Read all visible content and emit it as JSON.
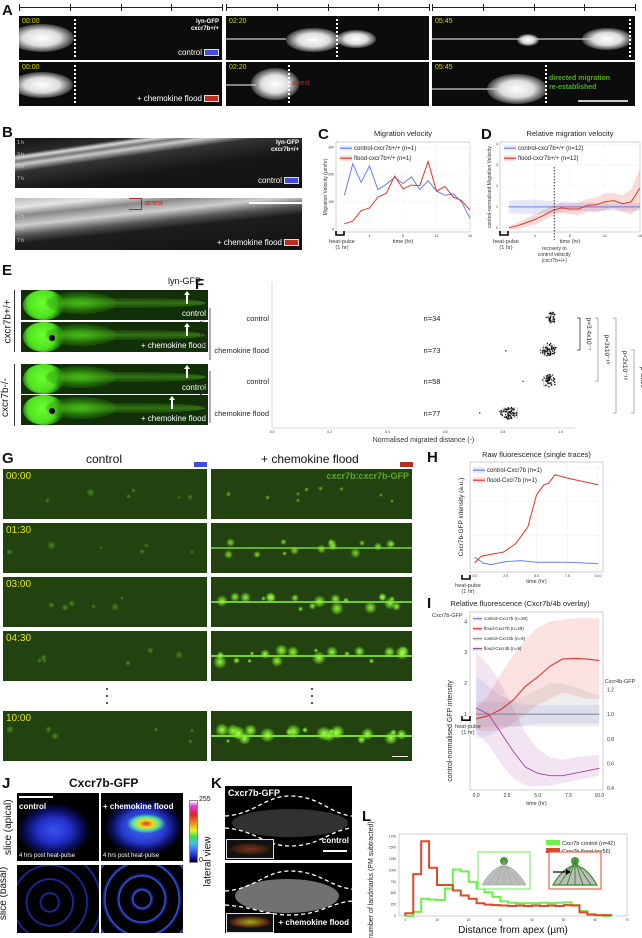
{
  "colors": {
    "control": "#3b4fd8",
    "flood": "#b5301f",
    "blue_line": "#6b7fe8",
    "red_line": "#e0352b",
    "grey_line": "#8a8a8a",
    "purple_line": "#a0449a",
    "green_hist": "#6cf04c",
    "red_hist": "#e0482b"
  },
  "panel_A": {
    "label": "A",
    "timestamps": [
      "00:00",
      "02:20",
      "05:45"
    ],
    "marker": "lyn-GFP",
    "genotype": "cxcr7b+/+",
    "control": "control",
    "flood": "+ chemokine flood",
    "arrest": "arrest",
    "directed_1": "directed migration",
    "directed_2": "re-established"
  },
  "panel_B": {
    "label": "B",
    "times": [
      "1 h",
      "3 h",
      "5 h",
      "7 h"
    ],
    "marker": "lyn-GFP",
    "genotype": "cxcr7b+/+",
    "control": "control",
    "flood": "+ chemokine flood",
    "arrest": "arrest"
  },
  "panel_C": {
    "label": "C"
  },
  "panel_D": {
    "label": "D"
  },
  "panel_E": {
    "label": "E",
    "marker": "lyn-GFP",
    "genotypes": [
      "cxcr7b+/+",
      "cxcr7b-/-"
    ],
    "control": "control",
    "flood": "+ chemokine flood"
  },
  "panel_F": {
    "label": "F"
  },
  "panel_G": {
    "label": "G",
    "col_control": "control",
    "col_flood": "+ chemokine flood",
    "marker": "cxcr7b:cxcr7b-GFP",
    "timestamps": [
      "00:00",
      "01:30",
      "03:00",
      "04:30",
      "10:00"
    ]
  },
  "panel_H": {
    "label": "H"
  },
  "panel_I": {
    "label": "I"
  },
  "panel_J": {
    "label": "J",
    "title": "Cxcr7b-GFP",
    "row_apical": "slice (apical)",
    "row_basal": "slice (basal)",
    "control": "control",
    "flood": "+ chemokine flood",
    "time_note": "4 hrs post heat-pulse",
    "cbar_max": "255",
    "cbar_min": "0"
  },
  "panel_K": {
    "label": "K",
    "title": "Cxcr7b-GFP",
    "side": "lateral view",
    "control": "control",
    "flood": "+ chemokine flood"
  },
  "panel_L": {
    "label": "L"
  },
  "chart_data": [
    {
      "type": "line",
      "panel": "C",
      "title": "Migration velocity",
      "xlabel": "time (hr)",
      "ylabel": "Migration Velocity (µm/hr)",
      "xlim": [
        0,
        16
      ],
      "ylim": [
        -10,
        320
      ],
      "xticks": [
        4,
        8,
        12,
        16
      ],
      "xtick_labels": [
        "4",
        "8",
        "12",
        "16"
      ],
      "yticks": [
        0,
        100,
        200,
        300
      ],
      "ytick_labels": [
        "0",
        "100",
        "200",
        "300"
      ],
      "heat_pulse": [
        "heat-pulse",
        "(1 hr)"
      ],
      "x": [
        1,
        2,
        3,
        4,
        5,
        6,
        7,
        8,
        9,
        10,
        11,
        12,
        13,
        14,
        15,
        16
      ],
      "series": [
        {
          "name": "control-cxcr7b+/+ (n=1)",
          "color": "#6b7fe8",
          "values": [
            125,
            240,
            172,
            232,
            145,
            165,
            190,
            168,
            192,
            145,
            178,
            140,
            125,
            130,
            100,
            40
          ]
        },
        {
          "name": "flood-cxcr7b+/+ (n=1)",
          "color": "#e0352b",
          "values": [
            20,
            30,
            68,
            78,
            118,
            132,
            195,
            148,
            162,
            160,
            248,
            140,
            157,
            118,
            105,
            70
          ]
        }
      ]
    },
    {
      "type": "line",
      "panel": "D",
      "title": "Relative migration velocity",
      "xlabel": "time (hr)",
      "ylabel": "control-normalised Migration Velocity",
      "xlim": [
        0,
        16
      ],
      "ylim": [
        -0.2,
        4.1
      ],
      "xticks": [
        4,
        8,
        12,
        16
      ],
      "xtick_labels": [
        "4",
        "8",
        "12",
        "16"
      ],
      "yticks": [
        0,
        1,
        2,
        3,
        4
      ],
      "ytick_labels": [
        "0",
        "1",
        "2",
        "3",
        "4"
      ],
      "heat_pulse": [
        "heat-pulse",
        "(1 hr)"
      ],
      "vline_x": 6.2,
      "vline_note": [
        "recovery to",
        "control velocity",
        "(cxcr7b+/+)"
      ],
      "x": [
        1,
        2,
        3,
        4,
        5,
        6,
        7,
        8,
        9,
        10,
        11,
        12,
        13,
        14,
        15,
        16
      ],
      "series": [
        {
          "name": "control-cxcr7b+/+ (n=12)",
          "color": "#6b7fe8",
          "values": [
            1,
            1,
            1,
            1,
            1,
            1,
            1,
            1,
            1,
            1,
            1,
            1,
            1,
            1,
            1,
            1
          ],
          "ci": [
            0.3,
            0.32,
            0.34,
            0.35,
            0.3,
            0.28,
            0.25,
            0.22,
            0.2,
            0.2,
            0.2,
            0.18,
            0.18,
            0.18,
            0.18,
            0.18
          ]
        },
        {
          "name": "flood-cxcr7b+/+ (n=12)",
          "color": "#e0352b",
          "values": [
            0,
            0.1,
            0.25,
            0.4,
            0.6,
            0.82,
            0.95,
            0.9,
            0.9,
            1.08,
            1.1,
            1.25,
            1.3,
            1.15,
            1.25,
            1.9
          ],
          "ci": [
            0.1,
            0.15,
            0.2,
            0.25,
            0.25,
            0.25,
            0.25,
            0.25,
            0.3,
            0.3,
            0.35,
            0.4,
            0.35,
            0.4,
            0.6,
            0.95
          ]
        }
      ]
    },
    {
      "type": "scatter",
      "panel": "F",
      "xlabel": "Normalised migrated distance (-)",
      "xlim": [
        0,
        1.05
      ],
      "xticks": [
        0,
        0.2,
        0.4,
        0.6,
        0.8,
        1.0
      ],
      "xtick_labels": [
        "0.0",
        "0.2",
        "0.4",
        "0.6",
        "0.8",
        "1.0"
      ],
      "groups": [
        {
          "name": "cxcr7b+/+",
          "rows": [
            0,
            1
          ]
        },
        {
          "name": "cxcr7b-/-",
          "rows": [
            2,
            3
          ]
        }
      ],
      "categories": [
        "control",
        "chemokine flood",
        "control",
        "chemokine flood"
      ],
      "n_labels": [
        "n=34",
        "n=73",
        "n=58",
        "n=77"
      ],
      "n": [
        34,
        73,
        58,
        77
      ],
      "median": [
        0.97,
        0.96,
        0.96,
        0.82
      ],
      "iqr": [
        [
          0.96,
          0.98
        ],
        [
          0.94,
          0.98
        ],
        [
          0.94,
          0.97
        ],
        [
          0.8,
          0.85
        ]
      ],
      "min": [
        0.95,
        0.81,
        0.87,
        0.72
      ],
      "max": [
        0.98,
        0.99,
        0.98,
        0.89
      ],
      "pvalues": [
        {
          "text": "p=3.4x10⁻⁷",
          "from": 0,
          "to": 1
        },
        {
          "text": "p=3x10⁻¹⁰",
          "from": 0,
          "to": 2
        },
        {
          "text": "p<2x10⁻¹⁶",
          "from": 0,
          "to": 3
        },
        {
          "text": "p<2x10⁻¹⁶",
          "from": 1,
          "to": 3
        }
      ]
    },
    {
      "type": "line",
      "panel": "H",
      "title": "Raw fluorescence (single traces)",
      "xlabel": "time (hr)",
      "ylabel": "Cxcr7b-GFP intensity (a.u.)",
      "xlim": [
        -0.4,
        10.4
      ],
      "ylim": [
        0,
        3.0
      ],
      "xticks": [
        0,
        2.5,
        5,
        7.5,
        10
      ],
      "xtick_labels": [
        "0.0",
        "2.5",
        "5.0",
        "7.5",
        "10.0"
      ],
      "yticks": [
        0,
        1,
        2,
        3
      ],
      "heat_pulse": [
        "heat-pulse",
        "(1 hr)"
      ],
      "series": [
        {
          "name": "control-Cxcr7b (n=1)",
          "color": "#6b7fe8",
          "x": [
            0,
            0.7,
            1.3,
            2.5,
            3.7,
            5,
            7.5,
            10
          ],
          "values": [
            0.35,
            0.17,
            0.13,
            0.22,
            0.25,
            0.2,
            0.2,
            0.16
          ]
        },
        {
          "name": "flood-Cxcr7b (n=1)",
          "color": "#e0352b",
          "x": [
            0,
            0.5,
            1.5,
            2.3,
            3.3,
            4.3,
            5.0,
            5.6,
            6.0,
            6.5,
            7.5,
            10
          ],
          "values": [
            0.18,
            0.38,
            0.45,
            0.5,
            0.75,
            1.25,
            2.2,
            2.5,
            2.55,
            2.8,
            2.7,
            2.5
          ]
        }
      ]
    },
    {
      "type": "line",
      "panel": "I",
      "title": "Relative fluorescence (Cxcr7b/4b overlay)",
      "xlabel": "time (hr)",
      "ylabel": "control-normalised GFP intensity",
      "ylabel_left_axis": "Cxcr7b-GFP",
      "ylabel_right_axis": "Cxcr4b-GFP",
      "xlim": [
        -0.5,
        10.3
      ],
      "ylim_left": [
        -1.45,
        4.3
      ],
      "ylim_right": [
        0.384,
        1.83
      ],
      "xticks": [
        0,
        2.5,
        5,
        7.5,
        10
      ],
      "xtick_labels": [
        "0.0",
        "2.5",
        "5.0",
        "7.5",
        "10.0"
      ],
      "yticks_left": [
        1,
        2,
        3,
        4
      ],
      "ytick_labels_left": [
        "1",
        "2",
        "3",
        "4"
      ],
      "yticks_right": [
        0.4,
        0.6,
        0.8,
        1.0,
        1.2
      ],
      "ytick_labels_right": [
        "0.4",
        "0.6",
        "0.8",
        "1.0",
        "1.2"
      ],
      "heat_pulse": [
        "heat-pulse",
        "(1 hr)"
      ],
      "x": [
        0,
        1,
        2,
        3,
        4,
        5,
        6,
        7,
        8,
        9,
        10
      ],
      "series": [
        {
          "name": "control-Cxcr7b (n=30)",
          "axis": "left",
          "color": "#6b7fe8",
          "values": [
            1,
            1,
            1,
            1,
            1,
            1,
            1,
            1,
            1,
            1,
            1
          ],
          "lower": [
            0.2,
            0.3,
            0.5,
            0.6,
            0.65,
            0.7,
            0.7,
            0.7,
            0.7,
            0.7,
            0.7
          ],
          "upper": [
            2.25,
            1.9,
            1.6,
            1.4,
            1.3,
            1.3,
            1.3,
            1.3,
            1.3,
            1.3,
            1.3
          ]
        },
        {
          "name": "flood-Cxcr7b (n=29)",
          "axis": "left",
          "color": "#e0352b",
          "values": [
            0.85,
            0.95,
            1.15,
            1.45,
            1.9,
            2.2,
            2.55,
            2.78,
            2.8,
            2.78,
            2.73
          ],
          "lower": [
            0.5,
            0.45,
            0.5,
            0.7,
            1.0,
            1.3,
            1.5,
            1.7,
            1.6,
            1.5,
            1.5
          ],
          "upper": [
            1.2,
            1.6,
            2.3,
            2.9,
            3.4,
            3.8,
            4.0,
            4.05,
            4.1,
            4.1,
            4.1
          ]
        },
        {
          "name": "control-Cxcr4b (n=9)",
          "axis": "right",
          "color": "#8a8a8a",
          "values": [
            1,
            1,
            1,
            1,
            1,
            1,
            1,
            1,
            1,
            1,
            1
          ],
          "lower": [
            0.9,
            0.9,
            0.9,
            0.9,
            0.9,
            0.9,
            0.9,
            0.9,
            0.9,
            0.9,
            0.9
          ],
          "upper": [
            1.1,
            1.1,
            1.1,
            1.12,
            1.15,
            1.2,
            1.25,
            1.25,
            1.22,
            1.18,
            1.15
          ]
        },
        {
          "name": "flood-Cxcr4b (n=9)",
          "axis": "right",
          "color": "#a0449a",
          "values": [
            1.05,
            1.0,
            0.85,
            0.7,
            0.57,
            0.52,
            0.5,
            0.5,
            0.52,
            0.54,
            0.56
          ],
          "lower": [
            0.85,
            0.75,
            0.6,
            0.48,
            0.42,
            0.41,
            0.42,
            0.44,
            0.46,
            0.48,
            0.5
          ],
          "upper": [
            1.5,
            1.4,
            1.25,
            1.05,
            0.85,
            0.72,
            0.65,
            0.63,
            0.65,
            0.66,
            0.67
          ]
        }
      ]
    },
    {
      "type": "bar",
      "panel": "L",
      "histogram": true,
      "xlabel": "Distance from apex (µm)",
      "ylabel": "number of landmarks (PM subtracted)",
      "bin_start": 0,
      "bin_width": 2.5,
      "xlim": [
        -2,
        70
      ],
      "ylim": [
        0,
        1800
      ],
      "xticks": [
        0,
        10,
        20,
        30,
        40,
        50,
        60,
        70
      ],
      "xtick_labels": [
        "0",
        "10",
        "20",
        "30",
        "40",
        "50",
        "60",
        "70"
      ],
      "yticks": [
        0,
        250,
        500,
        750,
        1000,
        1250,
        1500,
        1750
      ],
      "ytick_labels": [
        "0",
        "250",
        "500",
        "750",
        "1000",
        "1250",
        "1500",
        "1750"
      ],
      "series": [
        {
          "name": "Cxcr7b control (n=42)",
          "color": "#6cf04c",
          "values": [
            0,
            90,
            380,
            360,
            350,
            600,
            1020,
            980,
            750,
            600,
            520,
            420,
            320,
            290,
            280,
            280,
            280,
            290,
            280,
            290,
            300,
            240,
            110,
            40,
            10,
            0
          ]
        },
        {
          "name": "Cxcr7b flood (n=56)",
          "color": "#e0482b",
          "values": [
            60,
            920,
            1640,
            1060,
            680,
            680,
            560,
            450,
            380,
            280,
            250,
            240,
            230,
            220,
            230,
            220,
            230,
            220,
            230,
            220,
            240,
            230,
            80,
            30,
            20,
            20
          ]
        }
      ]
    }
  ]
}
